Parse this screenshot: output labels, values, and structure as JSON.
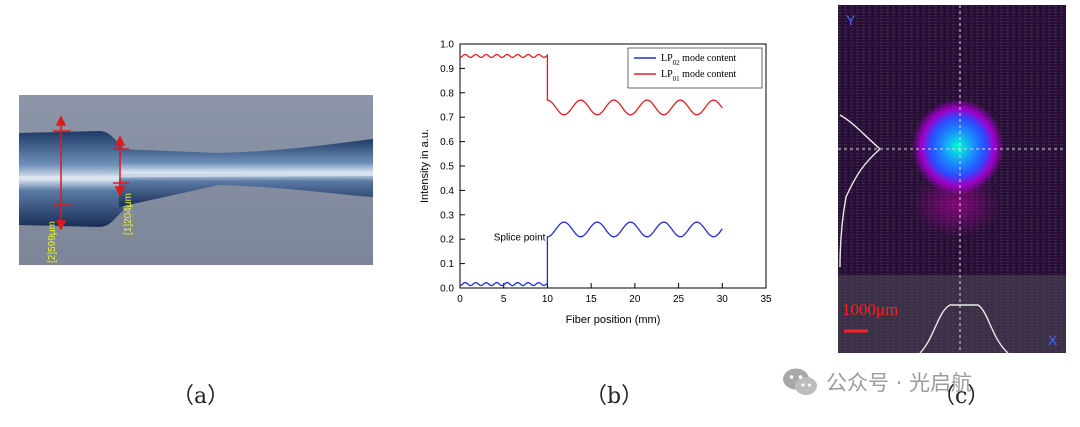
{
  "panel_a": {
    "caption": "（a）",
    "label_large": "[2]599μm",
    "label_small": "[1]204μm"
  },
  "panel_b": {
    "caption": "（b）",
    "annotation": "Splice point"
  },
  "panel_c": {
    "caption": "（c）",
    "axis_y_label": "Y",
    "axis_x_label": "X",
    "scale_label": "1000μm",
    "colors": {
      "background": "#2a0e3a",
      "hot": "#00ffd0",
      "mid": "#2a4cff",
      "halo": "#d400b4",
      "scale": "#ff2020"
    }
  },
  "watermark": {
    "text": "公众号 · 光启航",
    "icon": "wechat-icon"
  },
  "chart_data": {
    "type": "line",
    "title": "",
    "xlabel": "Fiber position (mm)",
    "ylabel": "Intensity in a.u.",
    "xlim": [
      0,
      35
    ],
    "ylim": [
      0,
      1.0
    ],
    "xticks": [
      0,
      5,
      10,
      15,
      20,
      25,
      30,
      35
    ],
    "yticks": [
      0.0,
      0.1,
      0.2,
      0.3,
      0.4,
      0.5,
      0.6,
      0.7,
      0.8,
      0.9,
      1.0
    ],
    "grid": false,
    "legend_position": "top-right",
    "splice_x": 10,
    "series": [
      {
        "name": "LP02 mode content",
        "legend_main": "LP",
        "legend_sub": "02",
        "legend_rest": " mode content",
        "color": "#2030d0",
        "segments": [
          {
            "x_start": 0,
            "x_end": 10,
            "base": 0.01,
            "amplitude": 0.012,
            "period": 1.2
          },
          {
            "x_start": 10,
            "x_end": 30,
            "base": 0.21,
            "amplitude": 0.06,
            "period": 3.8
          }
        ]
      },
      {
        "name": "LP01 mode content",
        "legend_main": "LP",
        "legend_sub": "01",
        "legend_rest": " mode content",
        "color": "#e02020",
        "segments": [
          {
            "x_start": 0,
            "x_end": 10,
            "base": 0.945,
            "amplitude": 0.012,
            "period": 1.2
          },
          {
            "x_start": 10,
            "x_end": 30,
            "base": 0.77,
            "amplitude": -0.06,
            "period": 3.8
          }
        ]
      }
    ]
  }
}
